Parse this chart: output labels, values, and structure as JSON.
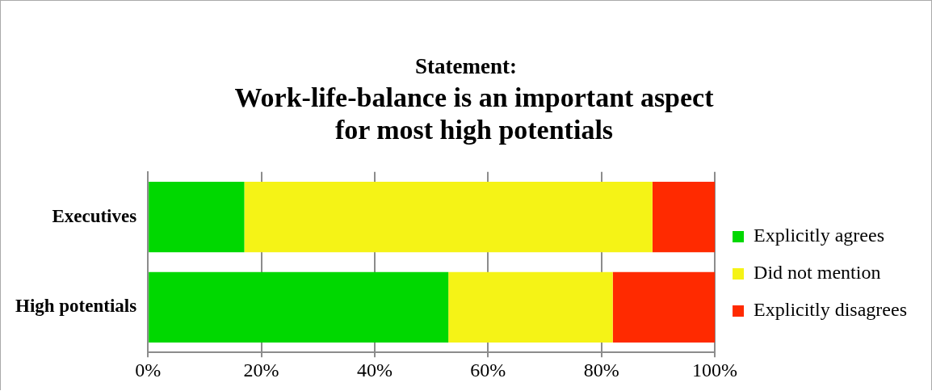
{
  "chart_data": {
    "type": "bar",
    "orientation": "horizontal",
    "stacked": true,
    "title": "Statement:",
    "subtitle": "Work-life-balance is an important aspect for most high potentials",
    "categories": [
      "Executives",
      "High potentials"
    ],
    "series": [
      {
        "name": "Explicitly agrees",
        "color": "#00d800",
        "values": [
          17,
          53
        ]
      },
      {
        "name": "Did not mention",
        "color": "#f5f316",
        "values": [
          72,
          29
        ]
      },
      {
        "name": "Explicitly disagrees",
        "color": "#ff2a00",
        "values": [
          11,
          18
        ]
      }
    ],
    "xlim": [
      0,
      100
    ],
    "xticks": [
      {
        "value": 0,
        "label": "0%"
      },
      {
        "value": 20,
        "label": "20%"
      },
      {
        "value": 40,
        "label": "40%"
      },
      {
        "value": 60,
        "label": "60%"
      },
      {
        "value": 80,
        "label": "80%"
      },
      {
        "value": 100,
        "label": "100%"
      }
    ],
    "grid": "x",
    "legend": "right"
  }
}
